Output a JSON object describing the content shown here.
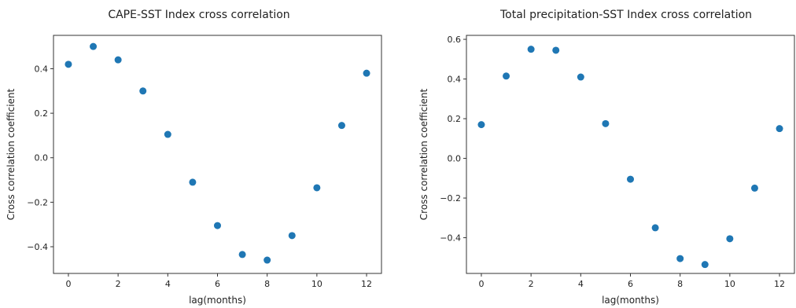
{
  "chart_data": [
    {
      "type": "scatter",
      "title": "CAPE-SST Index cross correlation",
      "xlabel": "lag(months)",
      "ylabel": "Cross correlation coefficient",
      "xlim": [
        -0.6,
        12.6
      ],
      "ylim": [
        -0.52,
        0.55
      ],
      "xticks": [
        0,
        2,
        4,
        6,
        8,
        10,
        12
      ],
      "yticks": [
        -0.4,
        -0.2,
        0.0,
        0.2,
        0.4
      ],
      "ytick_labels": [
        "−0.4",
        "−0.2",
        "0.0",
        "0.2",
        "0.4"
      ],
      "grid": false,
      "marker_color": "#1f77b4",
      "x": [
        0,
        1,
        2,
        3,
        4,
        5,
        6,
        7,
        8,
        9,
        10,
        11,
        12
      ],
      "y": [
        0.42,
        0.5,
        0.44,
        0.3,
        0.105,
        -0.11,
        -0.305,
        -0.435,
        -0.46,
        -0.35,
        -0.135,
        0.145,
        0.38
      ]
    },
    {
      "type": "scatter",
      "title": "Total precipitation-SST Index cross correlation",
      "xlabel": "lag(months)",
      "ylabel": "Cross correlation coefficient",
      "xlim": [
        -0.6,
        12.6
      ],
      "ylim": [
        -0.58,
        0.62
      ],
      "xticks": [
        0,
        2,
        4,
        6,
        8,
        10,
        12
      ],
      "yticks": [
        -0.4,
        -0.2,
        0.0,
        0.2,
        0.4,
        0.6
      ],
      "ytick_labels": [
        "−0.4",
        "−0.2",
        "0.0",
        "0.2",
        "0.4",
        "0.6"
      ],
      "grid": false,
      "marker_color": "#1f77b4",
      "x": [
        0,
        1,
        2,
        3,
        4,
        5,
        6,
        7,
        8,
        9,
        10,
        11,
        12
      ],
      "y": [
        0.17,
        0.415,
        0.55,
        0.545,
        0.41,
        0.175,
        -0.105,
        -0.35,
        -0.505,
        -0.535,
        -0.405,
        -0.15,
        0.15
      ]
    }
  ]
}
